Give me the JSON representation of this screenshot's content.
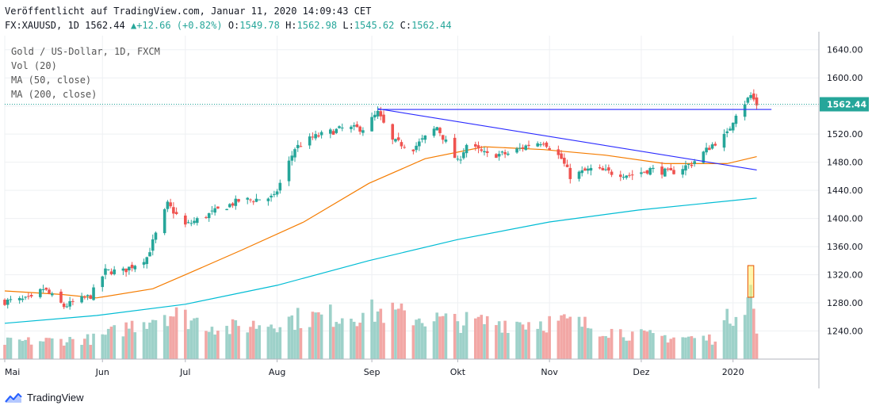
{
  "header": {
    "published": "Veröffentlicht auf TradingView.com, Januar 11, 2020 14:09:43 CET",
    "symbol": "FX:XAUUSD, 1D",
    "last": "1562.44",
    "change": "+12.66 (+0.82%)",
    "o_label": "O:",
    "o_value": "1549.78",
    "h_label": "H:",
    "h_value": "1562.98",
    "l_label": "L:",
    "l_value": "1545.62",
    "c_label": "C:",
    "c_value": "1562.44"
  },
  "legend": {
    "title": "Gold  / US-Dollar, 1D, FXCM",
    "vol": "Vol (20)",
    "ma50": "MA (50, close)",
    "ma200": "MA (200, close)"
  },
  "footer": {
    "brand": "TradingView",
    "logo_icon": "tradingview-logo-icon"
  },
  "colors": {
    "up": "#26a69a",
    "down": "#ef5350",
    "vol_up": "#9dd1c9",
    "vol_down": "#f2a7a5",
    "ma50": "#f57c00",
    "ma200": "#00bcd4",
    "trendline": "#2a2aff",
    "grid": "#eef0f3"
  },
  "chart_data": {
    "type": "candlestick",
    "title": "Gold  / US-Dollar, 1D, FXCM",
    "ylim": [
      1200,
      1660
    ],
    "y_ticks": [
      "1240.00",
      "1280.00",
      "1320.00",
      "1360.00",
      "1400.00",
      "1440.00",
      "1480.00",
      "1520.00",
      "1560.00",
      "1600.00",
      "1640.00"
    ],
    "x_ticks": [
      "Mai",
      "Jun",
      "Jul",
      "Aug",
      "Sep",
      "Okt",
      "Nov",
      "Dez",
      "2020"
    ],
    "x_range": [
      "2019-05-01",
      "2020-01-31"
    ],
    "x_tick_dates": [
      "2019-05-01",
      "2019-06-03",
      "2019-07-01",
      "2019-08-01",
      "2019-09-02",
      "2019-10-01",
      "2019-11-01",
      "2019-12-02",
      "2020-01-02"
    ],
    "last_price_label": "1562.44",
    "last_price": 1562.44,
    "close_path": [
      [
        "2019-05-01",
        1282
      ],
      [
        "2019-05-10",
        1285
      ],
      [
        "2019-05-14",
        1300
      ],
      [
        "2019-05-21",
        1275
      ],
      [
        "2019-05-30",
        1290
      ],
      [
        "2019-06-04",
        1325
      ],
      [
        "2019-06-10",
        1325
      ],
      [
        "2019-06-18",
        1345
      ],
      [
        "2019-06-25",
        1420
      ],
      [
        "2019-07-01",
        1390
      ],
      [
        "2019-07-05",
        1398
      ],
      [
        "2019-07-12",
        1412
      ],
      [
        "2019-07-19",
        1425
      ],
      [
        "2019-07-31",
        1430
      ],
      [
        "2019-08-07",
        1500
      ],
      [
        "2019-08-13",
        1515
      ],
      [
        "2019-08-23",
        1528
      ],
      [
        "2019-08-30",
        1528
      ],
      [
        "2019-09-04",
        1550
      ],
      [
        "2019-09-09",
        1510
      ],
      [
        "2019-09-16",
        1500
      ],
      [
        "2019-09-24",
        1530
      ],
      [
        "2019-10-01",
        1480
      ],
      [
        "2019-10-04",
        1505
      ],
      [
        "2019-10-11",
        1490
      ],
      [
        "2019-10-18",
        1492
      ],
      [
        "2019-10-25",
        1505
      ],
      [
        "2019-10-30",
        1510
      ],
      [
        "2019-11-05",
        1485
      ],
      [
        "2019-11-08",
        1460
      ],
      [
        "2019-11-15",
        1470
      ],
      [
        "2019-11-22",
        1465
      ],
      [
        "2019-11-29",
        1462
      ],
      [
        "2019-12-05",
        1470
      ],
      [
        "2019-12-12",
        1465
      ],
      [
        "2019-12-19",
        1478
      ],
      [
        "2019-12-26",
        1505
      ],
      [
        "2019-12-31",
        1520
      ],
      [
        "2020-01-03",
        1550
      ],
      [
        "2020-01-08",
        1575
      ],
      [
        "2020-01-10",
        1562.44
      ]
    ],
    "volume_path": [
      [
        "2019-05-01",
        0.25
      ],
      [
        "2019-06-01",
        0.3
      ],
      [
        "2019-06-24",
        0.7
      ],
      [
        "2019-07-15",
        0.45
      ],
      [
        "2019-08-07",
        0.6
      ],
      [
        "2019-09-04",
        0.7
      ],
      [
        "2019-10-01",
        0.55
      ],
      [
        "2019-11-08",
        0.55
      ],
      [
        "2019-12-01",
        0.35
      ],
      [
        "2019-12-26",
        0.3
      ],
      [
        "2020-01-03",
        0.75
      ],
      [
        "2020-01-08",
        1.0
      ],
      [
        "2020-01-10",
        0.4
      ]
    ],
    "ma50_path": [
      [
        "2019-05-01",
        1297
      ],
      [
        "2019-05-20",
        1292
      ],
      [
        "2019-06-01",
        1287
      ],
      [
        "2019-06-20",
        1300
      ],
      [
        "2019-07-01",
        1320
      ],
      [
        "2019-07-20",
        1355
      ],
      [
        "2019-08-10",
        1395
      ],
      [
        "2019-09-01",
        1450
      ],
      [
        "2019-09-20",
        1485
      ],
      [
        "2019-10-10",
        1502
      ],
      [
        "2019-10-30",
        1498
      ],
      [
        "2019-11-20",
        1490
      ],
      [
        "2019-12-10",
        1478
      ],
      [
        "2019-12-31",
        1478
      ],
      [
        "2020-01-10",
        1488
      ]
    ],
    "ma200_path": [
      [
        "2019-05-01",
        1251
      ],
      [
        "2019-06-01",
        1262
      ],
      [
        "2019-07-01",
        1278
      ],
      [
        "2019-08-01",
        1305
      ],
      [
        "2019-09-01",
        1340
      ],
      [
        "2019-10-01",
        1370
      ],
      [
        "2019-11-01",
        1395
      ],
      [
        "2019-12-01",
        1412
      ],
      [
        "2020-01-10",
        1429
      ]
    ],
    "trendline": [
      [
        "2019-09-04",
        1556
      ],
      [
        "2020-01-10",
        1469
      ]
    ],
    "horizontal_line": [
      [
        "2019-09-04",
        1555
      ],
      [
        "2020-01-15",
        1555
      ]
    ],
    "volume_highlight": [
      "2020-01-07",
      "2020-01-09"
    ]
  }
}
